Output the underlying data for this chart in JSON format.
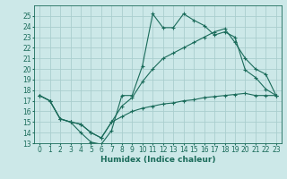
{
  "xlabel": "Humidex (Indice chaleur)",
  "bg_color": "#cce8e8",
  "grid_color": "#aacece",
  "line_color": "#1a6b5a",
  "x_hours": [
    0,
    1,
    2,
    3,
    4,
    5,
    6,
    7,
    8,
    9,
    10,
    11,
    12,
    13,
    14,
    15,
    16,
    17,
    18,
    19,
    20,
    21,
    22,
    23
  ],
  "line1": [
    17.5,
    17.0,
    15.3,
    15.0,
    14.0,
    13.1,
    12.9,
    14.2,
    17.5,
    17.5,
    20.3,
    25.2,
    23.9,
    23.9,
    25.2,
    24.6,
    24.1,
    23.2,
    23.5,
    23.0,
    19.9,
    19.2,
    18.1,
    17.5
  ],
  "line2": [
    17.5,
    17.0,
    15.3,
    15.0,
    14.8,
    14.0,
    13.5,
    15.0,
    16.5,
    17.3,
    18.8,
    20.0,
    21.0,
    21.5,
    22.0,
    22.5,
    23.0,
    23.5,
    23.8,
    22.5,
    21.0,
    20.0,
    19.5,
    17.5
  ],
  "line3": [
    17.5,
    17.0,
    15.3,
    15.0,
    14.8,
    14.0,
    13.5,
    15.0,
    15.5,
    16.0,
    16.3,
    16.5,
    16.7,
    16.8,
    17.0,
    17.1,
    17.3,
    17.4,
    17.5,
    17.6,
    17.7,
    17.5,
    17.5,
    17.5
  ],
  "ylim": [
    13,
    26
  ],
  "xlim": [
    -0.5,
    23.5
  ],
  "yticks": [
    13,
    14,
    15,
    16,
    17,
    18,
    19,
    20,
    21,
    22,
    23,
    24,
    25
  ],
  "xticks": [
    0,
    1,
    2,
    3,
    4,
    5,
    6,
    7,
    8,
    9,
    10,
    11,
    12,
    13,
    14,
    15,
    16,
    17,
    18,
    19,
    20,
    21,
    22,
    23
  ],
  "tick_fontsize": 5.5,
  "label_fontsize": 6.5
}
